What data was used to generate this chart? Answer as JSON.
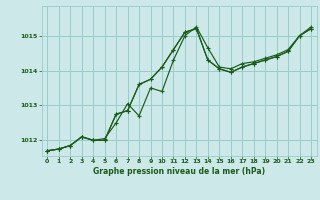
{
  "background_color": "#cce8e8",
  "grid_color": "#99cccc",
  "line_color": "#1a5c1a",
  "title": "Graphe pression niveau de la mer (hPa)",
  "xlim": [
    -0.5,
    23.5
  ],
  "ylim": [
    1011.55,
    1015.85
  ],
  "yticks": [
    1012,
    1013,
    1014,
    1015
  ],
  "xticks": [
    0,
    1,
    2,
    3,
    4,
    5,
    6,
    7,
    8,
    9,
    10,
    11,
    12,
    13,
    14,
    15,
    16,
    17,
    18,
    19,
    20,
    21,
    22,
    23
  ],
  "series1": [
    1011.7,
    1011.75,
    1011.85,
    1012.1,
    1012.0,
    1012.05,
    1012.5,
    1013.05,
    1012.7,
    1013.5,
    1013.4,
    1014.3,
    1015.0,
    1015.25,
    1014.65,
    1014.1,
    1014.05,
    1014.2,
    1014.25,
    1014.35,
    1014.45,
    1014.6,
    1015.0,
    1015.2
  ],
  "series2": [
    1011.7,
    1011.75,
    1011.85,
    1012.1,
    1012.0,
    1012.0,
    1012.75,
    1012.85,
    1013.6,
    1013.75,
    1014.1,
    1014.6,
    1015.1,
    1015.2,
    1014.3,
    1014.05,
    1013.95,
    1014.1,
    1014.2,
    1014.3,
    1014.4,
    1014.55,
    1015.0,
    1015.2
  ],
  "series3": [
    1011.7,
    1011.75,
    1011.85,
    1012.1,
    1012.0,
    1012.0,
    1012.75,
    1012.85,
    1013.6,
    1013.75,
    1014.1,
    1014.6,
    1015.1,
    1015.2,
    1014.3,
    1014.05,
    1013.95,
    1014.1,
    1014.2,
    1014.3,
    1014.4,
    1014.55,
    1015.0,
    1015.25
  ]
}
